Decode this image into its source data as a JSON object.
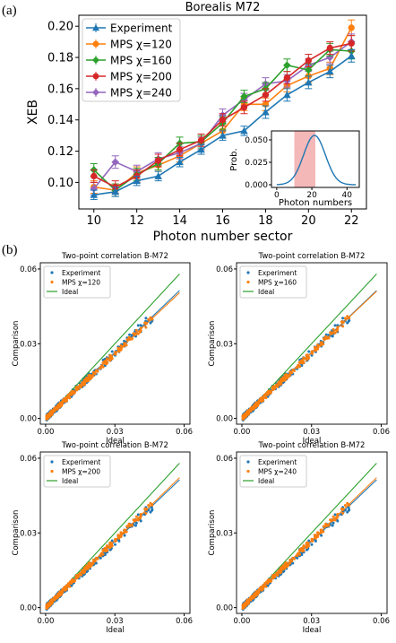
{
  "panels": {
    "a": "(a)",
    "b": "(b)"
  },
  "chart_data": [
    {
      "type": "line",
      "title": "Borealis M72",
      "xlabel": "Photon number sector",
      "ylabel": "XEB",
      "xlim": [
        9.3,
        22.7
      ],
      "ylim": [
        0.083,
        0.207
      ],
      "xticks": [
        "10",
        "12",
        "14",
        "16",
        "18",
        "20",
        "22"
      ],
      "yticks": [
        "0.10",
        "0.12",
        "0.14",
        "0.16",
        "0.18",
        "0.20"
      ],
      "legend_position": "top-left",
      "x": [
        10,
        11,
        12,
        13,
        14,
        15,
        16,
        17,
        18,
        19,
        20,
        21,
        22
      ],
      "series": [
        {
          "name": "Experiment",
          "color": "#1f77b4",
          "marker": "triangle",
          "values": [
            0.092,
            0.094,
            0.101,
            0.104,
            0.113,
            0.121,
            0.13,
            0.133,
            0.145,
            0.156,
            0.164,
            0.171,
            0.181
          ],
          "errors": [
            0.003,
            0.003,
            0.003,
            0.003,
            0.003,
            0.003,
            0.003,
            0.003,
            0.004,
            0.004,
            0.004,
            0.004,
            0.004
          ]
        },
        {
          "name": "MPS χ=120",
          "color": "#ff7f0e",
          "marker": "circle",
          "values": [
            0.097,
            0.095,
            0.106,
            0.111,
            0.117,
            0.125,
            0.133,
            0.15,
            0.15,
            0.162,
            0.168,
            0.173,
            0.199
          ],
          "errors": [
            0.004,
            0.004,
            0.004,
            0.004,
            0.004,
            0.004,
            0.004,
            0.004,
            0.004,
            0.004,
            0.004,
            0.004,
            0.005
          ]
        },
        {
          "name": "MPS χ=160",
          "color": "#2ca02c",
          "marker": "diamond",
          "values": [
            0.108,
            0.095,
            0.105,
            0.112,
            0.125,
            0.126,
            0.138,
            0.155,
            0.16,
            0.175,
            0.172,
            0.185,
            0.184
          ],
          "errors": [
            0.004,
            0.004,
            0.004,
            0.004,
            0.004,
            0.004,
            0.004,
            0.004,
            0.004,
            0.004,
            0.004,
            0.004,
            0.005
          ]
        },
        {
          "name": "MPS χ=200",
          "color": "#d62728",
          "marker": "circle",
          "values": [
            0.104,
            0.097,
            0.104,
            0.114,
            0.121,
            0.127,
            0.14,
            0.148,
            0.156,
            0.167,
            0.178,
            0.186,
            0.189
          ],
          "errors": [
            0.004,
            0.004,
            0.004,
            0.004,
            0.004,
            0.004,
            0.004,
            0.004,
            0.004,
            0.004,
            0.004,
            0.004,
            0.005
          ]
        },
        {
          "name": "MPS χ=240",
          "color": "#9467bd",
          "marker": "diamond",
          "values": [
            0.096,
            0.113,
            0.107,
            0.115,
            0.119,
            0.125,
            0.143,
            0.153,
            0.163,
            0.165,
            0.175,
            0.18,
            0.19
          ],
          "errors": [
            0.004,
            0.004,
            0.004,
            0.004,
            0.004,
            0.004,
            0.004,
            0.004,
            0.004,
            0.004,
            0.004,
            0.004,
            0.005
          ]
        }
      ],
      "inset": {
        "type": "line",
        "ylabel": "Prob.",
        "xlabel": "Photon numbers",
        "xlim": [
          -3,
          47
        ],
        "ylim": [
          -0.003,
          0.06
        ],
        "xticks": [
          "0",
          "20",
          "40"
        ],
        "yticks": [
          "0.000",
          "0.025",
          "0.050"
        ],
        "shaded_range": [
          10,
          22
        ],
        "shade_color": "#f4b8b8",
        "line_color": "#1f77b4",
        "peak_x": 21.5,
        "peak_y": 0.055,
        "sigma": 6.2
      }
    },
    {
      "type": "scatter",
      "title": "Two-point correlation B-M72",
      "xlabel": "Ideal",
      "ylabel": "Comparison",
      "ticks": [
        "0.00",
        "0.03",
        "0.06"
      ],
      "legend_position": "top-left",
      "legend": [
        "Experiment",
        "MPS χ=120",
        "Ideal"
      ],
      "colors": {
        "experiment": "#1f77b4",
        "mps": "#ff7f0e",
        "ideal": "#2ca02c"
      },
      "ideal_slope": 1.0,
      "experiment_slope": 0.885,
      "mps_slope": 0.87
    },
    {
      "type": "scatter",
      "title": "Two-point correlation B-M72",
      "xlabel": "Ideal",
      "ylabel": "Comparison",
      "ticks": [
        "0.00",
        "0.03",
        "0.06"
      ],
      "legend_position": "top-left",
      "legend": [
        "Experiment",
        "MPS χ=160",
        "Ideal"
      ],
      "colors": {
        "experiment": "#1f77b4",
        "mps": "#ff7f0e",
        "ideal": "#2ca02c"
      },
      "ideal_slope": 1.0,
      "experiment_slope": 0.885,
      "mps_slope": 0.88
    },
    {
      "type": "scatter",
      "title": "Two-point correlation B-M72",
      "xlabel": "Ideal",
      "ylabel": "Comparison",
      "ticks": [
        "0.00",
        "0.03",
        "0.06"
      ],
      "legend_position": "top-left",
      "legend": [
        "Experiment",
        "MPS χ=200",
        "Ideal"
      ],
      "colors": {
        "experiment": "#1f77b4",
        "mps": "#ff7f0e",
        "ideal": "#2ca02c"
      },
      "ideal_slope": 1.0,
      "experiment_slope": 0.885,
      "mps_slope": 0.9
    },
    {
      "type": "scatter",
      "title": "Two-point correlation B-M72",
      "xlabel": "Ideal",
      "ylabel": "Comparison",
      "ticks": [
        "0.00",
        "0.03",
        "0.06"
      ],
      "legend_position": "top-left",
      "legend": [
        "Experiment",
        "MPS χ=240",
        "Ideal"
      ],
      "colors": {
        "experiment": "#1f77b4",
        "mps": "#ff7f0e",
        "ideal": "#2ca02c"
      },
      "ideal_slope": 1.0,
      "experiment_slope": 0.885,
      "mps_slope": 0.9
    }
  ]
}
